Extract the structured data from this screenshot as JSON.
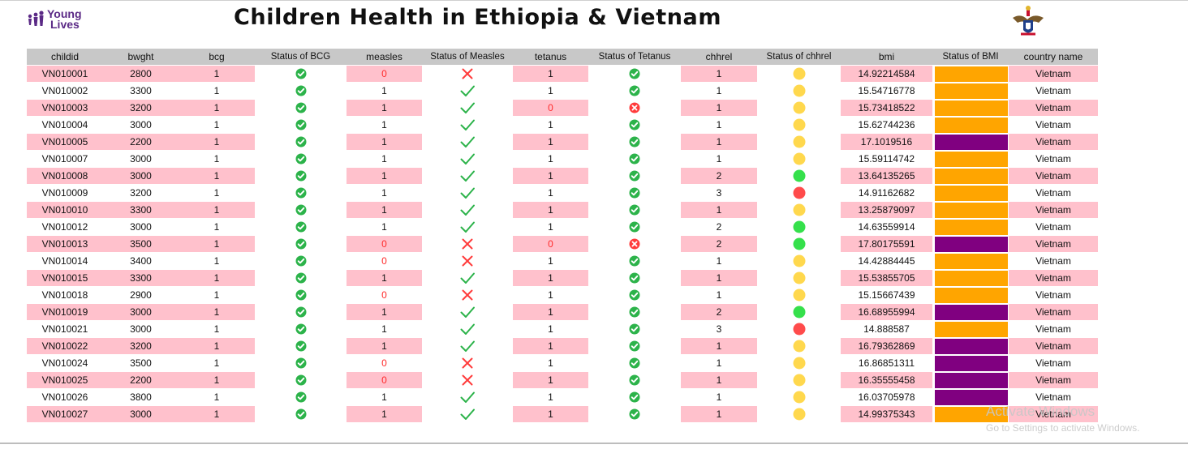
{
  "header": {
    "logo_text_line1": "Young",
    "logo_text_line2": "Lives",
    "title": "Children Health in Ethiopia & Vietnam"
  },
  "table": {
    "columns": [
      "childid",
      "bwght",
      "bcg",
      "Status of BCG",
      "measles",
      "Status of Measles",
      "tetanus",
      "Status of Tetanus",
      "chhrel",
      "Status of chhrel",
      "bmi",
      "Status of BMI",
      "country name"
    ],
    "rows": [
      {
        "childid": "VN010001",
        "bwght": "2800",
        "bcg": "1",
        "measles": "0",
        "tetanus": "1",
        "chhrel": "1",
        "bmi": "14.92214584",
        "country": "Vietnam",
        "bmi_status": "orange",
        "chhrel_status": "yellow"
      },
      {
        "childid": "VN010002",
        "bwght": "3300",
        "bcg": "1",
        "measles": "1",
        "tetanus": "1",
        "chhrel": "1",
        "bmi": "15.54716778",
        "country": "Vietnam",
        "bmi_status": "orange",
        "chhrel_status": "yellow"
      },
      {
        "childid": "VN010003",
        "bwght": "3200",
        "bcg": "1",
        "measles": "1",
        "tetanus": "0",
        "chhrel": "1",
        "bmi": "15.73418522",
        "country": "Vietnam",
        "bmi_status": "orange",
        "chhrel_status": "yellow"
      },
      {
        "childid": "VN010004",
        "bwght": "3000",
        "bcg": "1",
        "measles": "1",
        "tetanus": "1",
        "chhrel": "1",
        "bmi": "15.62744236",
        "country": "Vietnam",
        "bmi_status": "orange",
        "chhrel_status": "yellow"
      },
      {
        "childid": "VN010005",
        "bwght": "2200",
        "bcg": "1",
        "measles": "1",
        "tetanus": "1",
        "chhrel": "1",
        "bmi": "17.1019516",
        "country": "Vietnam",
        "bmi_status": "purple",
        "chhrel_status": "yellow"
      },
      {
        "childid": "VN010007",
        "bwght": "3000",
        "bcg": "1",
        "measles": "1",
        "tetanus": "1",
        "chhrel": "1",
        "bmi": "15.59114742",
        "country": "Vietnam",
        "bmi_status": "orange",
        "chhrel_status": "yellow"
      },
      {
        "childid": "VN010008",
        "bwght": "3000",
        "bcg": "1",
        "measles": "1",
        "tetanus": "1",
        "chhrel": "2",
        "bmi": "13.64135265",
        "country": "Vietnam",
        "bmi_status": "orange",
        "chhrel_status": "green"
      },
      {
        "childid": "VN010009",
        "bwght": "3200",
        "bcg": "1",
        "measles": "1",
        "tetanus": "1",
        "chhrel": "3",
        "bmi": "14.91162682",
        "country": "Vietnam",
        "bmi_status": "orange",
        "chhrel_status": "red"
      },
      {
        "childid": "VN010010",
        "bwght": "3300",
        "bcg": "1",
        "measles": "1",
        "tetanus": "1",
        "chhrel": "1",
        "bmi": "13.25879097",
        "country": "Vietnam",
        "bmi_status": "orange",
        "chhrel_status": "yellow"
      },
      {
        "childid": "VN010012",
        "bwght": "3000",
        "bcg": "1",
        "measles": "1",
        "tetanus": "1",
        "chhrel": "2",
        "bmi": "14.63559914",
        "country": "Vietnam",
        "bmi_status": "orange",
        "chhrel_status": "green"
      },
      {
        "childid": "VN010013",
        "bwght": "3500",
        "bcg": "1",
        "measles": "0",
        "tetanus": "0",
        "chhrel": "2",
        "bmi": "17.80175591",
        "country": "Vietnam",
        "bmi_status": "purple",
        "chhrel_status": "green"
      },
      {
        "childid": "VN010014",
        "bwght": "3400",
        "bcg": "1",
        "measles": "0",
        "tetanus": "1",
        "chhrel": "1",
        "bmi": "14.42884445",
        "country": "Vietnam",
        "bmi_status": "orange",
        "chhrel_status": "yellow"
      },
      {
        "childid": "VN010015",
        "bwght": "3300",
        "bcg": "1",
        "measles": "1",
        "tetanus": "1",
        "chhrel": "1",
        "bmi": "15.53855705",
        "country": "Vietnam",
        "bmi_status": "orange",
        "chhrel_status": "yellow"
      },
      {
        "childid": "VN010018",
        "bwght": "2900",
        "bcg": "1",
        "measles": "0",
        "tetanus": "1",
        "chhrel": "1",
        "bmi": "15.15667439",
        "country": "Vietnam",
        "bmi_status": "orange",
        "chhrel_status": "yellow"
      },
      {
        "childid": "VN010019",
        "bwght": "3000",
        "bcg": "1",
        "measles": "1",
        "tetanus": "1",
        "chhrel": "2",
        "bmi": "16.68955994",
        "country": "Vietnam",
        "bmi_status": "purple",
        "chhrel_status": "green"
      },
      {
        "childid": "VN010021",
        "bwght": "3000",
        "bcg": "1",
        "measles": "1",
        "tetanus": "1",
        "chhrel": "3",
        "bmi": "14.888587",
        "country": "Vietnam",
        "bmi_status": "orange",
        "chhrel_status": "red"
      },
      {
        "childid": "VN010022",
        "bwght": "3200",
        "bcg": "1",
        "measles": "1",
        "tetanus": "1",
        "chhrel": "1",
        "bmi": "16.79362869",
        "country": "Vietnam",
        "bmi_status": "purple",
        "chhrel_status": "yellow"
      },
      {
        "childid": "VN010024",
        "bwght": "3500",
        "bcg": "1",
        "measles": "0",
        "tetanus": "1",
        "chhrel": "1",
        "bmi": "16.86851311",
        "country": "Vietnam",
        "bmi_status": "purple",
        "chhrel_status": "yellow"
      },
      {
        "childid": "VN010025",
        "bwght": "2200",
        "bcg": "1",
        "measles": "0",
        "tetanus": "1",
        "chhrel": "1",
        "bmi": "16.35555458",
        "country": "Vietnam",
        "bmi_status": "purple",
        "chhrel_status": "yellow"
      },
      {
        "childid": "VN010026",
        "bwght": "3800",
        "bcg": "1",
        "measles": "1",
        "tetanus": "1",
        "chhrel": "1",
        "bmi": "16.03705978",
        "country": "Vietnam",
        "bmi_status": "purple",
        "chhrel_status": "yellow"
      },
      {
        "childid": "VN010027",
        "bwght": "3000",
        "bcg": "1",
        "measles": "1",
        "tetanus": "1",
        "chhrel": "1",
        "bmi": "14.99375343",
        "country": "Vietnam",
        "bmi_status": "orange",
        "chhrel_status": "yellow"
      }
    ]
  },
  "status_colors": {
    "row_pink": "#ffc1cc",
    "header_gray": "#c8c8c8",
    "zero_text": "#ff2b2b",
    "check_green": "#2cb34a",
    "cross_red": "#ff3b3b",
    "circle_yellow": "#ffd84d",
    "circle_green": "#35e04b",
    "circle_red": "#ff4b4b",
    "bmi_orange": "#ffa500",
    "bmi_purple": "#800080"
  },
  "icons": {
    "status_check": "check-circle-icon",
    "status_error": "x-circle-icon",
    "measles_yes": "checkmark-icon",
    "measles_no": "x-mark-icon",
    "chhrel_dot": "status-dot-icon"
  },
  "watermark": {
    "line1": "Activate Windows",
    "line2": "Go to Settings to activate Windows."
  }
}
